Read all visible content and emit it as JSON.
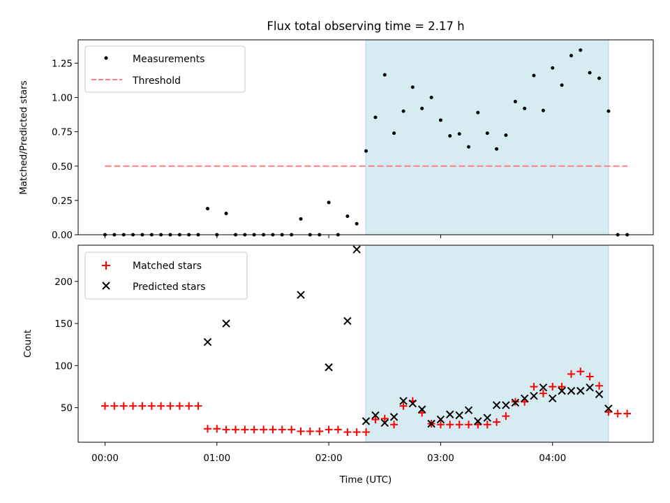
{
  "chart_data": [
    {
      "type": "scatter",
      "title": "Flux total observing time = 2.17 h",
      "xlabel": "",
      "ylabel": "Matched/Predicted stars",
      "xlim": [
        -0.24,
        4.9
      ],
      "ylim": [
        0,
        1.42
      ],
      "yticks": [
        0.0,
        0.25,
        0.5,
        0.75,
        1.0,
        1.25
      ],
      "ytick_labels": [
        "0.00",
        "0.25",
        "0.50",
        "0.75",
        "1.00",
        "1.25"
      ],
      "shaded_region": [
        2.33,
        4.5
      ],
      "legend": [
        "Measurements",
        "Threshold"
      ],
      "threshold": {
        "name": "Threshold",
        "value": 0.5,
        "x": [
          0,
          4.67
        ],
        "color": "#ff7f7f"
      },
      "series": [
        {
          "name": "Measurements",
          "color": "#000000",
          "x": [
            0.0,
            0.083,
            0.167,
            0.25,
            0.333,
            0.417,
            0.5,
            0.583,
            0.667,
            0.75,
            0.833,
            0.917,
            1.0,
            1.083,
            1.167,
            1.25,
            1.333,
            1.417,
            1.5,
            1.583,
            1.667,
            1.75,
            1.833,
            1.917,
            2.0,
            2.083,
            2.167,
            2.25,
            2.333,
            2.417,
            2.5,
            2.583,
            2.667,
            2.75,
            2.833,
            2.917,
            3.0,
            3.083,
            3.167,
            3.25,
            3.333,
            3.417,
            3.5,
            3.583,
            3.667,
            3.75,
            3.833,
            3.917,
            4.0,
            4.083,
            4.167,
            4.25,
            4.333,
            4.417,
            4.5,
            4.583,
            4.667
          ],
          "y": [
            0,
            0,
            0,
            0,
            0,
            0,
            0,
            0,
            0,
            0,
            0,
            0.19,
            0,
            0.155,
            0,
            0,
            0,
            0,
            0,
            0,
            0,
            0.115,
            0,
            0,
            0.235,
            0,
            0.135,
            0.08,
            0.61,
            0.855,
            1.165,
            0.74,
            0.9,
            1.075,
            0.92,
            1.0,
            0.835,
            0.72,
            0.735,
            0.64,
            0.89,
            0.74,
            0.625,
            0.725,
            0.97,
            0.92,
            1.16,
            0.905,
            1.215,
            1.09,
            1.305,
            1.345,
            1.18,
            1.14,
            0.9,
            0,
            0
          ]
        }
      ]
    },
    {
      "type": "scatter",
      "title": "",
      "xlabel": "Time (UTC)",
      "ylabel": "Count",
      "xlim": [
        -0.24,
        4.9
      ],
      "ylim": [
        9,
        243
      ],
      "yticks": [
        50,
        100,
        150,
        200
      ],
      "ytick_labels": [
        "50",
        "100",
        "150",
        "200"
      ],
      "xticks": [
        0,
        1,
        2,
        3,
        4
      ],
      "xtick_labels": [
        "00:00",
        "01:00",
        "02:00",
        "03:00",
        "04:00"
      ],
      "shaded_region": [
        2.33,
        4.5
      ],
      "legend": [
        "Matched stars",
        "Predicted stars"
      ],
      "series": [
        {
          "name": "Matched stars",
          "marker": "+",
          "color": "#ff0000",
          "x": [
            0.0,
            0.083,
            0.167,
            0.25,
            0.333,
            0.417,
            0.5,
            0.583,
            0.667,
            0.75,
            0.833,
            0.917,
            1.0,
            1.083,
            1.167,
            1.25,
            1.333,
            1.417,
            1.5,
            1.583,
            1.667,
            1.75,
            1.833,
            1.917,
            2.0,
            2.083,
            2.167,
            2.25,
            2.333,
            2.417,
            2.5,
            2.583,
            2.667,
            2.75,
            2.833,
            2.917,
            3.0,
            3.083,
            3.167,
            3.25,
            3.333,
            3.417,
            3.5,
            3.583,
            3.667,
            3.75,
            3.833,
            3.917,
            4.0,
            4.083,
            4.167,
            4.25,
            4.333,
            4.417,
            4.5,
            4.583,
            4.667
          ],
          "y": [
            52,
            52,
            52,
            52,
            52,
            52,
            52,
            52,
            52,
            52,
            52,
            25,
            25,
            24,
            24,
            24,
            24,
            24,
            24,
            24,
            24,
            22,
            22,
            22,
            24,
            24,
            21,
            21,
            21,
            36,
            37,
            30,
            52,
            58,
            44,
            31,
            30,
            30,
            30,
            30,
            30,
            30,
            33,
            40,
            57,
            57,
            75,
            67,
            75,
            75,
            90,
            93,
            87,
            76,
            45,
            43,
            43
          ]
        },
        {
          "name": "Predicted stars",
          "marker": "x",
          "color": "#000000",
          "x": [
            0.917,
            1.083,
            1.75,
            2.0,
            2.167,
            2.25,
            2.333,
            2.417,
            2.5,
            2.583,
            2.667,
            2.75,
            2.833,
            2.917,
            3.0,
            3.083,
            3.167,
            3.25,
            3.333,
            3.417,
            3.5,
            3.583,
            3.667,
            3.75,
            3.833,
            3.917,
            4.0,
            4.083,
            4.167,
            4.25,
            4.333,
            4.417,
            4.5
          ],
          "y": [
            128,
            150,
            184,
            98,
            153,
            238,
            34,
            41,
            32,
            39,
            58,
            55,
            48,
            31,
            36,
            42,
            41,
            47,
            34,
            38,
            53,
            53,
            56,
            61,
            64,
            74,
            61,
            70,
            70,
            70,
            74,
            66,
            49
          ]
        }
      ]
    }
  ]
}
